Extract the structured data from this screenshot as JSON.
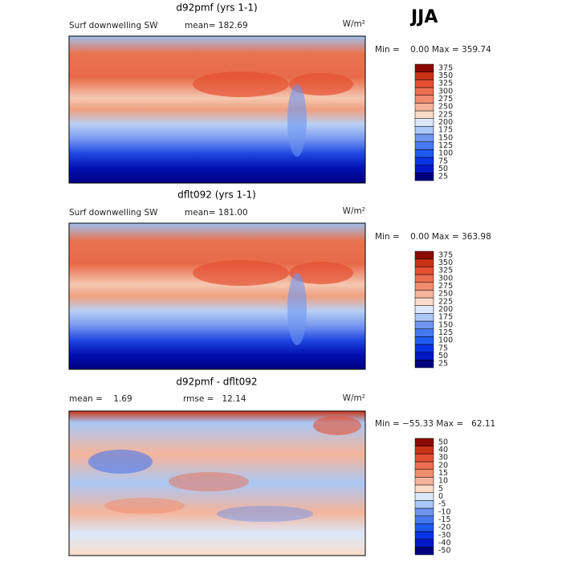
{
  "label": "JJA",
  "panels": [
    {
      "title": "d92pmf (yrs 1-1)",
      "variable": "Surf downwelling SW",
      "stat": "mean= 182.69",
      "units": "W/m²",
      "range": "Min =    0.00 Max = 359.74",
      "levels": [
        25,
        50,
        75,
        100,
        125,
        150,
        175,
        200,
        225,
        250,
        275,
        300,
        325,
        350,
        375
      ],
      "colors": [
        "#00007f",
        "#0018c8",
        "#0a32e6",
        "#1e5af0",
        "#4678f0",
        "#6e96f0",
        "#aac8f5",
        "#dce9fa",
        "#fadcc8",
        "#f5b49b",
        "#f08c6e",
        "#eb6e50",
        "#e65032",
        "#c83214",
        "#8c0a00"
      ]
    },
    {
      "title": "dflt092 (yrs 1-1)",
      "variable": "Surf downwelling SW",
      "stat": "mean= 181.00",
      "units": "W/m²",
      "range": "Min =    0.00 Max = 363.98",
      "levels": [
        25,
        50,
        75,
        100,
        125,
        150,
        175,
        200,
        225,
        250,
        275,
        300,
        325,
        350,
        375
      ],
      "colors": [
        "#00007f",
        "#0018c8",
        "#0a32e6",
        "#1e5af0",
        "#4678f0",
        "#6e96f0",
        "#aac8f5",
        "#dce9fa",
        "#fadcc8",
        "#f5b49b",
        "#f08c6e",
        "#eb6e50",
        "#e65032",
        "#c83214",
        "#8c0a00"
      ]
    },
    {
      "title": "d92pmf - dflt092",
      "stat": "mean =    1.69",
      "stat2": "rmse =   12.14",
      "units": "W/m²",
      "range": "Min = −55.33 Max =   62.11",
      "levels": [
        -50,
        -40,
        -30,
        -20,
        -15,
        -10,
        -5,
        0,
        5,
        10,
        15,
        20,
        30,
        40,
        50
      ],
      "colors": [
        "#00007f",
        "#0018c8",
        "#0a32e6",
        "#1e5af0",
        "#4678f0",
        "#6e96f0",
        "#aac8f5",
        "#dce9fa",
        "#fadcc8",
        "#f5b49b",
        "#f08c6e",
        "#eb6e50",
        "#e65032",
        "#c83214",
        "#8c0a00"
      ]
    }
  ]
}
